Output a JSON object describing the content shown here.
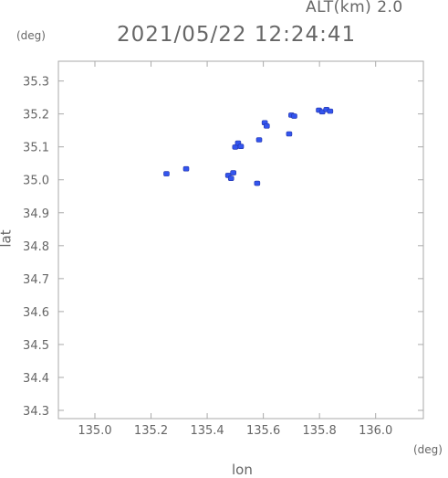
{
  "header": {
    "alt_label": "ALT(km) 2.0",
    "title": "2021/05/22 12:24:41"
  },
  "chart_data": {
    "type": "scatter",
    "title": "2021/05/22 12:24:41",
    "xlabel": "lon",
    "ylabel": "lat",
    "x_unit": "(deg)",
    "y_unit": "(deg)",
    "xlim": [
      134.87,
      136.17
    ],
    "ylim": [
      34.275,
      35.36
    ],
    "x_ticks": [
      135.0,
      135.2,
      135.4,
      135.6,
      135.8,
      136.0
    ],
    "x_tick_labels": [
      "135.0",
      "135.2",
      "135.4",
      "135.6",
      "135.8",
      "136.0"
    ],
    "y_ticks": [
      35.3,
      35.2,
      35.1,
      35.0,
      34.9,
      34.8,
      34.7,
      34.6,
      34.5,
      34.4,
      34.3
    ],
    "y_tick_labels": [
      "35.3",
      "35.2",
      "35.1",
      "35.0",
      "34.9",
      "34.8",
      "34.7",
      "34.6",
      "34.5",
      "34.4",
      "34.3"
    ],
    "grid": false,
    "color": "#3355ee",
    "points": [
      {
        "x": 135.255,
        "y": 35.017
      },
      {
        "x": 135.325,
        "y": 35.032
      },
      {
        "x": 135.475,
        "y": 35.012
      },
      {
        "x": 135.485,
        "y": 35.003
      },
      {
        "x": 135.493,
        "y": 35.02
      },
      {
        "x": 135.5,
        "y": 35.098
      },
      {
        "x": 135.51,
        "y": 35.11
      },
      {
        "x": 135.52,
        "y": 35.1
      },
      {
        "x": 135.578,
        "y": 34.988
      },
      {
        "x": 135.585,
        "y": 35.12
      },
      {
        "x": 135.605,
        "y": 35.172
      },
      {
        "x": 135.612,
        "y": 35.162
      },
      {
        "x": 135.692,
        "y": 35.138
      },
      {
        "x": 135.7,
        "y": 35.195
      },
      {
        "x": 135.71,
        "y": 35.192
      },
      {
        "x": 135.798,
        "y": 35.21
      },
      {
        "x": 135.81,
        "y": 35.205
      },
      {
        "x": 135.825,
        "y": 35.212
      },
      {
        "x": 135.838,
        "y": 35.207
      }
    ]
  }
}
